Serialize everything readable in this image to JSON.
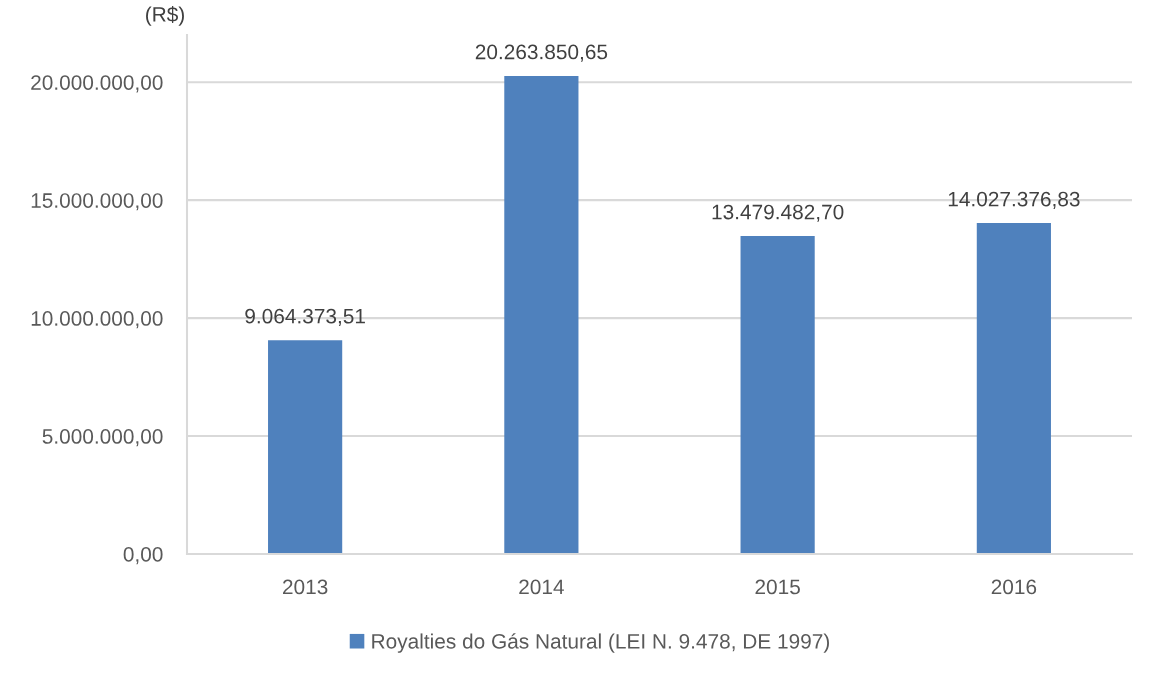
{
  "chart_data": {
    "type": "bar",
    "title": "(R$)",
    "categories": [
      "2013",
      "2014",
      "2015",
      "2016"
    ],
    "series": [
      {
        "name": "Royalties do Gás Natural (LEI N. 9.478, DE 1997)",
        "color": "#4f81bd",
        "values": [
          9064373.51,
          20263850.65,
          13479482.7,
          14027376.83
        ],
        "value_labels": [
          "9.064.373,51",
          "20.263.850,65",
          "13.479.482,70",
          "14.027.376,83"
        ]
      }
    ],
    "ylim": [
      0,
      22000000
    ],
    "yticks": [
      {
        "value": 0,
        "label": "0,00"
      },
      {
        "value": 5000000,
        "label": "5.000.000,00"
      },
      {
        "value": 10000000,
        "label": "10.000.000,00"
      },
      {
        "value": 15000000,
        "label": "15.000.000,00"
      },
      {
        "value": 20000000,
        "label": "20.000.000,00"
      }
    ],
    "grid": "y",
    "legend": "bottom"
  }
}
